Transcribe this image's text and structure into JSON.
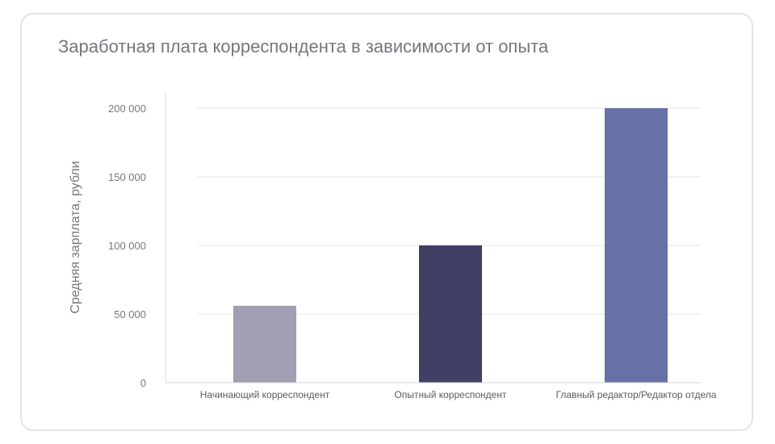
{
  "chart_data": {
    "type": "bar",
    "title": "Заработная плата корреспондента в зависимости от опыта",
    "xlabel": "",
    "ylabel": "Средняя зарплата, рубли",
    "categories": [
      "Начинающий корреспондент",
      "Опытный корреспондент",
      "Главный редактор/Редактор отдела"
    ],
    "values": [
      56000,
      100000,
      200000
    ],
    "colors": [
      "#a19fb3",
      "#413f63",
      "#6870a8"
    ],
    "ylim": [
      0,
      200000
    ],
    "yticks": [
      0,
      50000,
      100000,
      150000,
      200000
    ],
    "ytick_labels": [
      "0",
      "50 000",
      "100 000",
      "150 000",
      "200 000"
    ],
    "grid": true,
    "legend": "none"
  }
}
